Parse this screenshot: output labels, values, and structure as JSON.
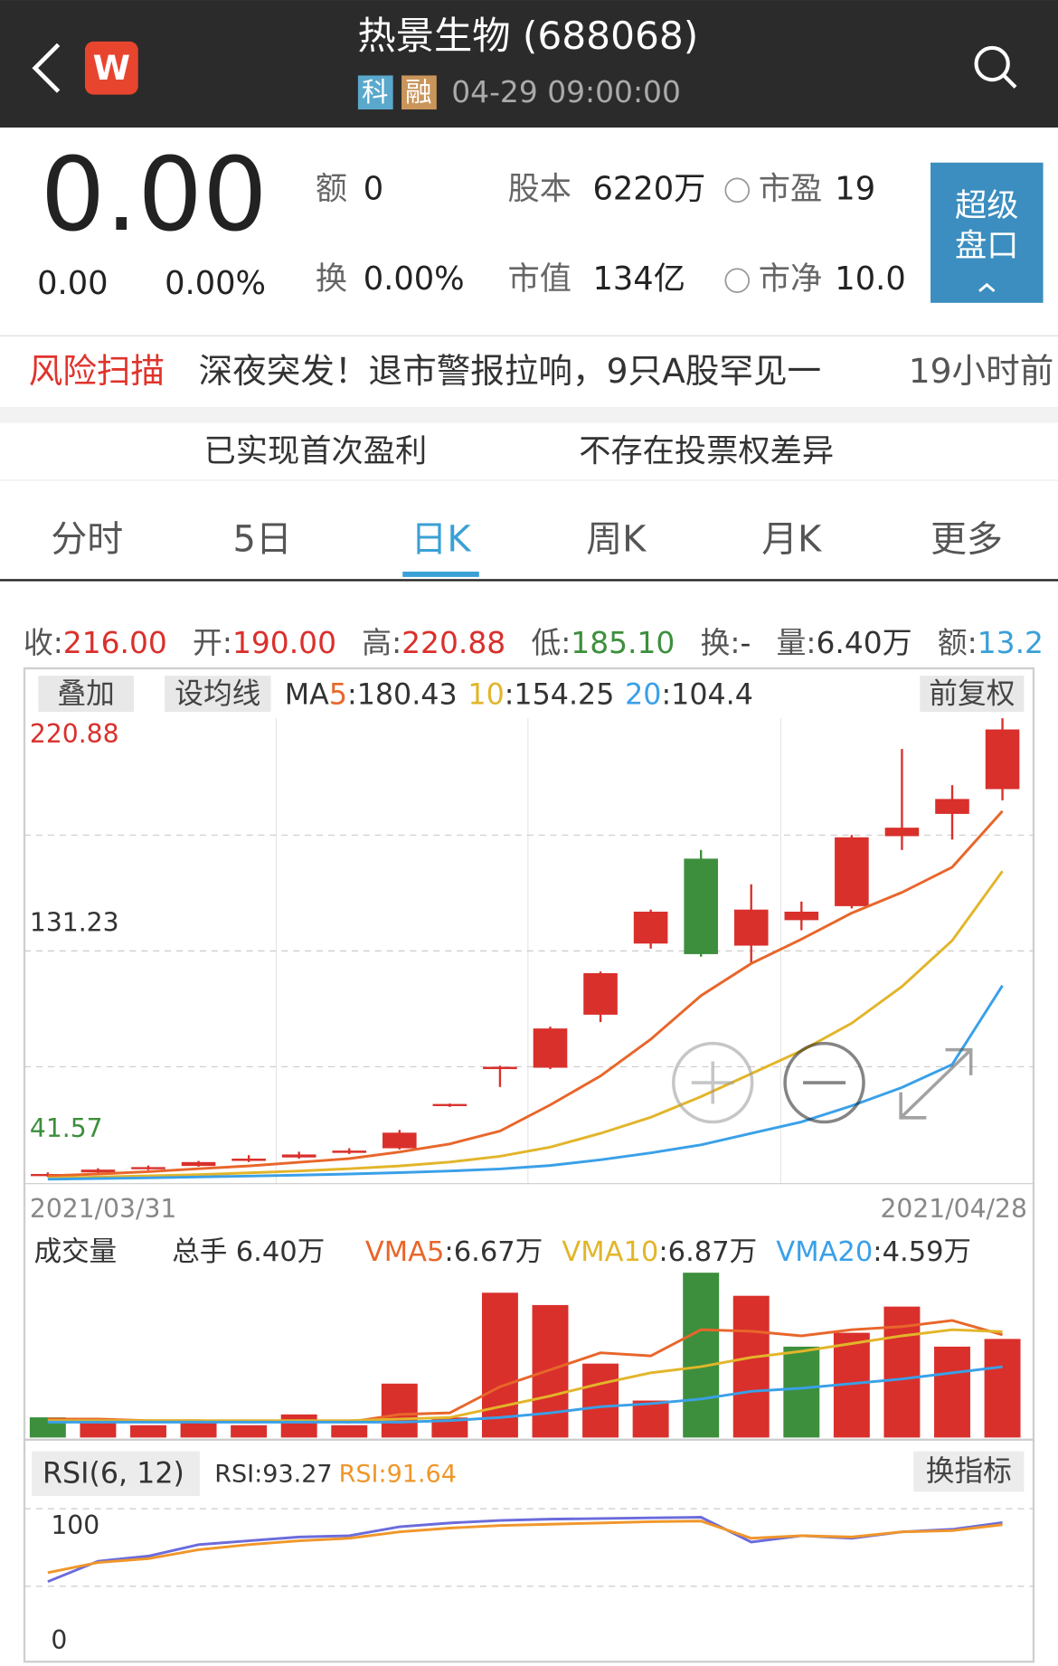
{
  "header": {
    "title": "热景生物 (688068)",
    "badges": [
      "科",
      "融"
    ],
    "time": "04-29 09:00:00",
    "logo": "W"
  },
  "quote": {
    "price": "0.00",
    "change": "0.00",
    "change_pct": "0.00%",
    "fields": [
      {
        "label": "额",
        "value": "0"
      },
      {
        "label": "换",
        "value": "0.00%"
      },
      {
        "label": "股本",
        "value": "6220万"
      },
      {
        "label": "市值",
        "value": "134亿"
      },
      {
        "label": "市盈",
        "value": "19"
      },
      {
        "label": "市净",
        "value": "10.0"
      }
    ],
    "button": [
      "超级",
      "盘口"
    ]
  },
  "news": {
    "tag": "风险扫描",
    "headline": "深夜突发！退市警报拉响，9只A股罕见一",
    "time": "19小时前"
  },
  "tags": [
    "已实现首次盈利",
    "不存在投票权差异"
  ],
  "tabs": [
    "分时",
    "5日",
    "日K",
    "周K",
    "月K",
    "更多"
  ],
  "active_tab": 2,
  "kline": {
    "stats": [
      {
        "label": "收:",
        "value": "216.00",
        "color": "#d9302c"
      },
      {
        "label": "开:",
        "value": "190.00",
        "color": "#d9302c"
      },
      {
        "label": "高:",
        "value": "220.88",
        "color": "#d9302c"
      },
      {
        "label": "低:",
        "value": "185.10",
        "color": "#3d8f3d"
      },
      {
        "label": "换:",
        "value": "-",
        "color": "#333333"
      },
      {
        "label": "量:",
        "value": "6.40万",
        "color": "#333333"
      },
      {
        "label": "额:",
        "value": "13.2",
        "color": "#3aa0d6"
      }
    ],
    "buttons": [
      "叠加",
      "设均线",
      "前复权"
    ],
    "ma_prefix": "MA",
    "separator": ":",
    "dates": [
      "2021/03/31",
      "2021/04/28"
    ],
    "ylim": [
      19.03,
      220.88
    ],
    "yticks": [
      220.88,
      131.23,
      41.57
    ],
    "ytick_colors": [
      "#d9302c",
      "#333333",
      "#3d8f3d"
    ],
    "up_color": "#d9302c",
    "down_color": "#3d8f3d",
    "open": [
      21.5,
      23.0,
      24.5,
      25.8,
      28.0,
      29.5,
      31.5,
      33.5,
      52.0,
      68.0,
      68.6,
      91.7,
      122.7,
      159.7,
      121.8,
      132.9,
      139.0,
      169.5,
      179.2,
      190.0
    ],
    "close": [
      22.3,
      24.2,
      25.3,
      27.5,
      29.0,
      30.8,
      32.5,
      40.3,
      52.8,
      69.0,
      85.7,
      109.8,
      136.6,
      118.1,
      137.5,
      136.6,
      169.0,
      173.2,
      185.7,
      216.0
    ],
    "high": [
      23.0,
      24.8,
      26.0,
      28.0,
      30.5,
      32.0,
      33.5,
      41.5,
      53.0,
      69.5,
      86.5,
      110.5,
      137.5,
      163.5,
      148.5,
      141.0,
      170.0,
      207.5,
      191.7,
      220.88
    ],
    "low": [
      21.0,
      22.8,
      24.0,
      25.5,
      27.5,
      29.0,
      31.0,
      33.0,
      51.5,
      60.2,
      68.0,
      88.5,
      120.5,
      117.0,
      114.0,
      128.5,
      138.0,
      163.5,
      168.0,
      185.1
    ],
    "ma": [
      {
        "name": "5",
        "color": "#e8662a",
        "values": [
          21.5,
          22.3,
          23.3,
          24.6,
          25.8,
          27.4,
          29.0,
          31.9,
          35.4,
          41.0,
          52.4,
          65.0,
          81.0,
          100.0,
          114.0,
          124.6,
          136.0,
          145.0,
          156.0,
          180.43
        ]
      },
      {
        "name": "10",
        "color": "#e2b52a",
        "values": [
          20.5,
          21.0,
          21.5,
          22.0,
          22.8,
          23.6,
          24.6,
          25.8,
          27.5,
          30.0,
          34.0,
          40.0,
          47.0,
          56.0,
          66.0,
          76.0,
          88.0,
          104.0,
          124.0,
          154.25
        ]
      },
      {
        "name": "20",
        "color": "#3aa0e8",
        "values": [
          20.0,
          20.3,
          20.6,
          21.0,
          21.4,
          21.8,
          22.3,
          22.9,
          23.6,
          24.5,
          26.0,
          28.5,
          31.5,
          35.0,
          40.0,
          45.0,
          52.0,
          60.0,
          70.0,
          104.4
        ]
      }
    ]
  },
  "volume": {
    "title": "成交量",
    "total_label": "总手",
    "total": "6.40万",
    "ylim": [
      0,
      12
    ],
    "values": [
      1.31,
      1.1,
      0.8,
      1.1,
      0.8,
      1.5,
      0.8,
      3.5,
      1.3,
      9.4,
      8.6,
      4.8,
      2.4,
      10.7,
      9.2,
      5.9,
      6.8,
      8.5,
      5.9,
      6.4
    ],
    "colors": [
      "#3d8f3d",
      "#d9302c",
      "#d9302c",
      "#d9302c",
      "#d9302c",
      "#d9302c",
      "#d9302c",
      "#d9302c",
      "#d9302c",
      "#d9302c",
      "#d9302c",
      "#d9302c",
      "#d9302c",
      "#3d8f3d",
      "#d9302c",
      "#3d8f3d",
      "#d9302c",
      "#d9302c",
      "#d9302c",
      "#d9302c"
    ],
    "series": [
      {
        "name": "VMA5",
        "label": "6.67万",
        "color": "#e8662a",
        "values": [
          1.2,
          1.2,
          1.1,
          1.1,
          1.0,
          1.1,
          1.0,
          1.5,
          1.6,
          3.3,
          4.4,
          5.5,
          5.3,
          7.0,
          6.9,
          6.6,
          7.0,
          7.2,
          7.6,
          6.67
        ]
      },
      {
        "name": "VMA10",
        "label": "6.87万",
        "color": "#e2b52a",
        "values": [
          1.1,
          1.1,
          1.1,
          1.1,
          1.1,
          1.1,
          1.1,
          1.2,
          1.3,
          2.0,
          2.7,
          3.5,
          4.2,
          4.6,
          5.2,
          5.6,
          6.1,
          6.6,
          7.0,
          6.87
        ]
      },
      {
        "name": "VMA20",
        "label": "4.59万",
        "color": "#3aa0e8",
        "values": [
          1.0,
          1.0,
          1.0,
          1.0,
          1.0,
          1.0,
          1.0,
          1.0,
          1.1,
          1.3,
          1.6,
          2.0,
          2.2,
          2.5,
          3.0,
          3.2,
          3.5,
          3.8,
          4.2,
          4.59
        ]
      }
    ]
  },
  "rsi": {
    "title": "RSI(6, 12)",
    "button": "换指标",
    "ylim": [
      0,
      100
    ],
    "yticks": [
      100,
      0
    ],
    "series": [
      {
        "name": "RSI",
        "color": "#6b6bdc",
        "values": [
          47,
          63,
          67,
          76,
          79,
          82,
          83,
          90,
          93,
          95,
          96,
          96.5,
          97,
          97.5,
          78,
          83,
          81,
          86,
          88,
          93.27
        ]
      },
      {
        "name": "RSI",
        "color": "#f0962a",
        "values": [
          54,
          62,
          65,
          72,
          76,
          79,
          81,
          86,
          89,
          91,
          92,
          93,
          94,
          94.5,
          81,
          83,
          82,
          86,
          87,
          91.64
        ]
      }
    ]
  }
}
